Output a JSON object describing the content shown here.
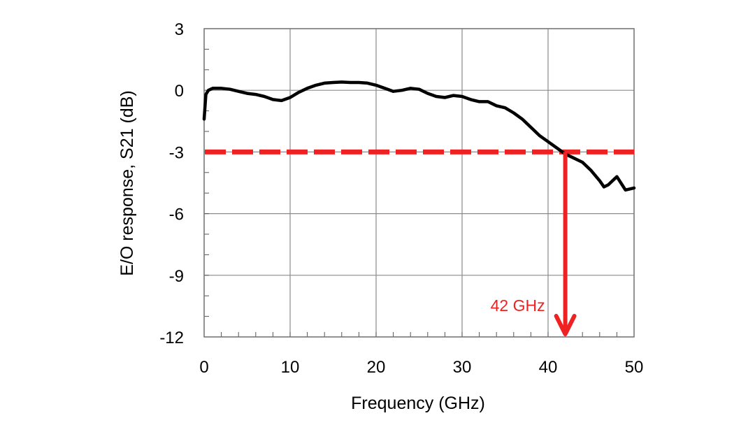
{
  "chart_data": {
    "type": "line",
    "xlabel": "Frequency (GHz)",
    "ylabel": "E/O response, S21 (dB)",
    "xlim": [
      0,
      50
    ],
    "ylim": [
      -12,
      3
    ],
    "xticks": [
      0,
      10,
      20,
      30,
      40,
      50
    ],
    "yticks": [
      3,
      0,
      -3,
      -6,
      -9,
      -12
    ],
    "xtick_labels": [
      "0",
      "10",
      "20",
      "30",
      "40",
      "50"
    ],
    "ytick_labels": [
      "3",
      "0",
      "-3",
      "-6",
      "-9",
      "-12"
    ],
    "grid": true,
    "series": [
      {
        "color": "#000000",
        "x": [
          0,
          0.2,
          0.5,
          1,
          2,
          3,
          4,
          5,
          6,
          7,
          8,
          9,
          10,
          11,
          12,
          13,
          14,
          15,
          16,
          17,
          18,
          19,
          20,
          21,
          22,
          23,
          24,
          25,
          26,
          27,
          28,
          29,
          30,
          31,
          32,
          33,
          34,
          35,
          36,
          37,
          38,
          39,
          40,
          41,
          42,
          43,
          44,
          45,
          46,
          46.5,
          47,
          48,
          49,
          50
        ],
        "y": [
          -1.4,
          -0.2,
          0.0,
          0.1,
          0.1,
          0.05,
          -0.05,
          -0.15,
          -0.2,
          -0.3,
          -0.45,
          -0.5,
          -0.35,
          -0.1,
          0.1,
          0.25,
          0.35,
          0.38,
          0.4,
          0.38,
          0.38,
          0.35,
          0.25,
          0.1,
          -0.05,
          0.0,
          0.1,
          0.05,
          -0.15,
          -0.3,
          -0.35,
          -0.25,
          -0.3,
          -0.45,
          -0.55,
          -0.55,
          -0.75,
          -0.85,
          -1.1,
          -1.4,
          -1.8,
          -2.2,
          -2.5,
          -2.8,
          -3.1,
          -3.3,
          -3.5,
          -3.9,
          -4.4,
          -4.7,
          -4.6,
          -4.2,
          -4.85,
          -4.75
        ]
      }
    ],
    "threshold": {
      "y": -3,
      "color": "#ee2222"
    },
    "marker": {
      "x": 42,
      "label": "42 GHz",
      "color": "#ee2222"
    }
  }
}
